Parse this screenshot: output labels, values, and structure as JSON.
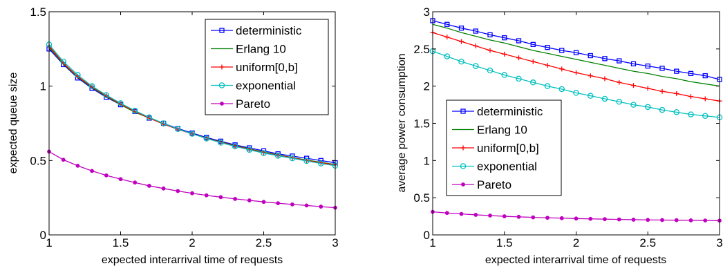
{
  "chart_data": [
    {
      "type": "line",
      "xlabel": "expected interarrival time of requests",
      "ylabel": "expected queue size",
      "xlim": [
        1,
        3
      ],
      "ylim": [
        0,
        1.5
      ],
      "xticks": [
        1,
        1.5,
        2,
        2.5,
        3
      ],
      "xtick_labels": [
        "1",
        "1.5",
        "2",
        "2.5",
        "3"
      ],
      "yticks": [
        0,
        0.5,
        1,
        1.5
      ],
      "ytick_labels": [
        "0",
        "0.5",
        "1",
        "1.5"
      ],
      "grid": false,
      "legend_position": "top-right",
      "x": [
        1.0,
        1.1,
        1.2,
        1.3,
        1.4,
        1.5,
        1.6,
        1.7,
        1.8,
        1.9,
        2.0,
        2.1,
        2.2,
        2.3,
        2.4,
        2.5,
        2.6,
        2.7,
        2.8,
        2.9,
        3.0
      ],
      "series": [
        {
          "name": "deterministic",
          "color": "#0000ff",
          "marker": "square",
          "values": [
            1.25,
            1.145,
            1.055,
            0.985,
            0.925,
            0.875,
            0.83,
            0.785,
            0.75,
            0.715,
            0.685,
            0.655,
            0.63,
            0.605,
            0.585,
            0.565,
            0.545,
            0.53,
            0.515,
            0.5,
            0.485
          ]
        },
        {
          "name": "Erlang 10",
          "color": "#008000",
          "marker": "none",
          "values": [
            1.26,
            1.15,
            1.06,
            0.99,
            0.93,
            0.875,
            0.825,
            0.785,
            0.745,
            0.71,
            0.68,
            0.65,
            0.625,
            0.6,
            0.578,
            0.557,
            0.538,
            0.52,
            0.503,
            0.488,
            0.473
          ]
        },
        {
          "name": "uniform[0,b]",
          "color": "#ff0000",
          "marker": "plus",
          "values": [
            1.27,
            1.155,
            1.065,
            0.995,
            0.935,
            0.88,
            0.83,
            0.785,
            0.745,
            0.71,
            0.68,
            0.65,
            0.623,
            0.598,
            0.575,
            0.553,
            0.535,
            0.518,
            0.5,
            0.485,
            0.47
          ]
        },
        {
          "name": "exponential",
          "color": "#00bfbf",
          "marker": "circle",
          "values": [
            1.28,
            1.165,
            1.075,
            1.0,
            0.94,
            0.885,
            0.835,
            0.79,
            0.75,
            0.712,
            0.68,
            0.648,
            0.62,
            0.595,
            0.572,
            0.55,
            0.532,
            0.515,
            0.497,
            0.48,
            0.465
          ]
        },
        {
          "name": "Pareto",
          "color": "#bf00bf",
          "marker": "dot",
          "values": [
            0.56,
            0.505,
            0.465,
            0.43,
            0.4,
            0.375,
            0.352,
            0.33,
            0.312,
            0.295,
            0.28,
            0.266,
            0.254,
            0.242,
            0.232,
            0.222,
            0.213,
            0.205,
            0.198,
            0.19,
            0.183
          ]
        }
      ]
    },
    {
      "type": "line",
      "xlabel": "expected interarrival time of requests",
      "ylabel": "average power consumption",
      "xlim": [
        1,
        3
      ],
      "ylim": [
        0,
        3
      ],
      "xticks": [
        1,
        1.5,
        2,
        2.5,
        3
      ],
      "xtick_labels": [
        "1",
        "1.5",
        "2",
        "2.5",
        "3"
      ],
      "yticks": [
        0,
        0.5,
        1,
        1.5,
        2,
        2.5,
        3
      ],
      "ytick_labels": [
        "0",
        "0.5",
        "1",
        "1.5",
        "2",
        "2.5",
        "3"
      ],
      "grid": false,
      "legend_position": "center-left",
      "x": [
        1.0,
        1.1,
        1.2,
        1.3,
        1.4,
        1.5,
        1.6,
        1.7,
        1.8,
        1.9,
        2.0,
        2.1,
        2.2,
        2.3,
        2.4,
        2.5,
        2.6,
        2.7,
        2.8,
        2.9,
        3.0
      ],
      "series": [
        {
          "name": "deterministic",
          "color": "#0000ff",
          "marker": "square",
          "values": [
            2.88,
            2.83,
            2.78,
            2.74,
            2.69,
            2.65,
            2.61,
            2.56,
            2.52,
            2.48,
            2.45,
            2.41,
            2.37,
            2.34,
            2.3,
            2.27,
            2.24,
            2.2,
            2.17,
            2.14,
            2.09
          ]
        },
        {
          "name": "Erlang 10",
          "color": "#008000",
          "marker": "none",
          "values": [
            2.83,
            2.78,
            2.72,
            2.67,
            2.62,
            2.58,
            2.53,
            2.48,
            2.44,
            2.4,
            2.36,
            2.32,
            2.28,
            2.24,
            2.2,
            2.17,
            2.13,
            2.1,
            2.06,
            2.03,
            2.0
          ]
        },
        {
          "name": "uniform[0,b]",
          "color": "#ff0000",
          "marker": "plus",
          "values": [
            2.72,
            2.66,
            2.6,
            2.54,
            2.48,
            2.43,
            2.38,
            2.33,
            2.28,
            2.23,
            2.18,
            2.14,
            2.1,
            2.05,
            2.01,
            1.97,
            1.93,
            1.9,
            1.86,
            1.83,
            1.8
          ]
        },
        {
          "name": "exponential",
          "color": "#00bfbf",
          "marker": "circle",
          "values": [
            2.47,
            2.4,
            2.33,
            2.27,
            2.21,
            2.15,
            2.1,
            2.05,
            2.0,
            1.96,
            1.91,
            1.87,
            1.83,
            1.79,
            1.75,
            1.72,
            1.68,
            1.65,
            1.62,
            1.6,
            1.58
          ]
        },
        {
          "name": "Pareto",
          "color": "#bf00bf",
          "marker": "dot",
          "values": [
            0.31,
            0.295,
            0.282,
            0.27,
            0.26,
            0.25,
            0.243,
            0.236,
            0.23,
            0.225,
            0.22,
            0.216,
            0.212,
            0.208,
            0.205,
            0.202,
            0.2,
            0.198,
            0.196,
            0.194,
            0.192
          ]
        }
      ]
    }
  ]
}
